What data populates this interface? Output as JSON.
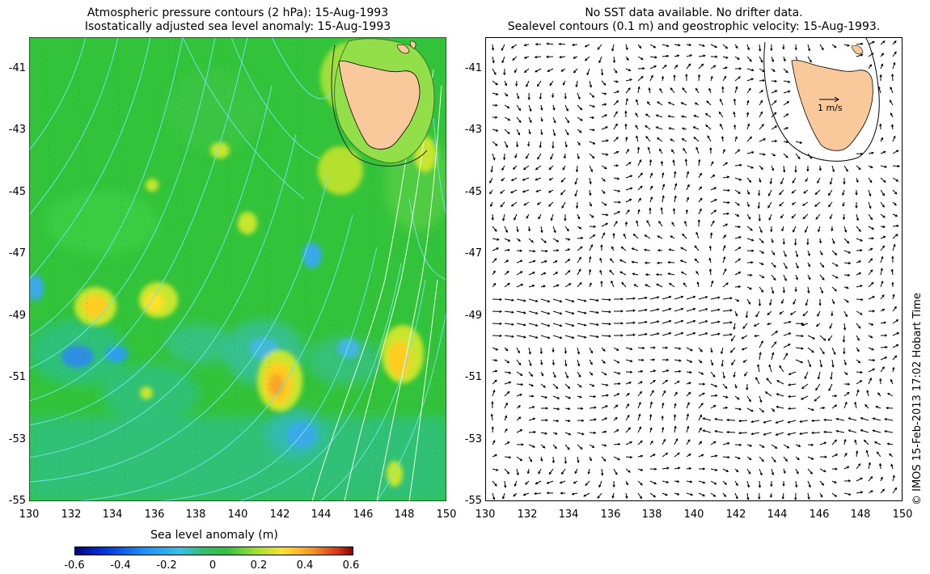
{
  "left_title": {
    "line1": "Atmospheric pressure contours (2 hPa): 15-Aug-1993",
    "line2": "Isostatically adjusted sea level anomaly: 15-Aug-1993"
  },
  "right_title": {
    "line1": "No SST data available.  No drifter data.",
    "line2": "Sealevel contours (0.1 m) and geostrophic velocity: 15-Aug-1993."
  },
  "axes": {
    "x_ticks": [
      "130",
      "132",
      "134",
      "136",
      "138",
      "140",
      "142",
      "144",
      "146",
      "148",
      "150"
    ],
    "y_ticks": [
      "-41",
      "-43",
      "-45",
      "-47",
      "-49",
      "-51",
      "-53",
      "-55"
    ],
    "x_range": [
      130,
      150
    ],
    "y_range": [
      -40,
      -55
    ]
  },
  "velocity_scale_label": "1 m/s",
  "credit": "© IMOS 15-Feb-2013 17:02 Hobart Time",
  "colorbar": {
    "title": "Sea level anomaly (m)",
    "ticks": [
      "-0.6",
      "-0.4",
      "-0.2",
      "0",
      "0.2",
      "0.4",
      "0.6"
    ],
    "range": [
      -0.6,
      0.6
    ]
  },
  "colors": {
    "land": "#f9c99c",
    "ocean_base": "#33c33a",
    "pressure_contour": "#6fe2e0",
    "sealevel_contour": "#e8ffe8"
  }
}
